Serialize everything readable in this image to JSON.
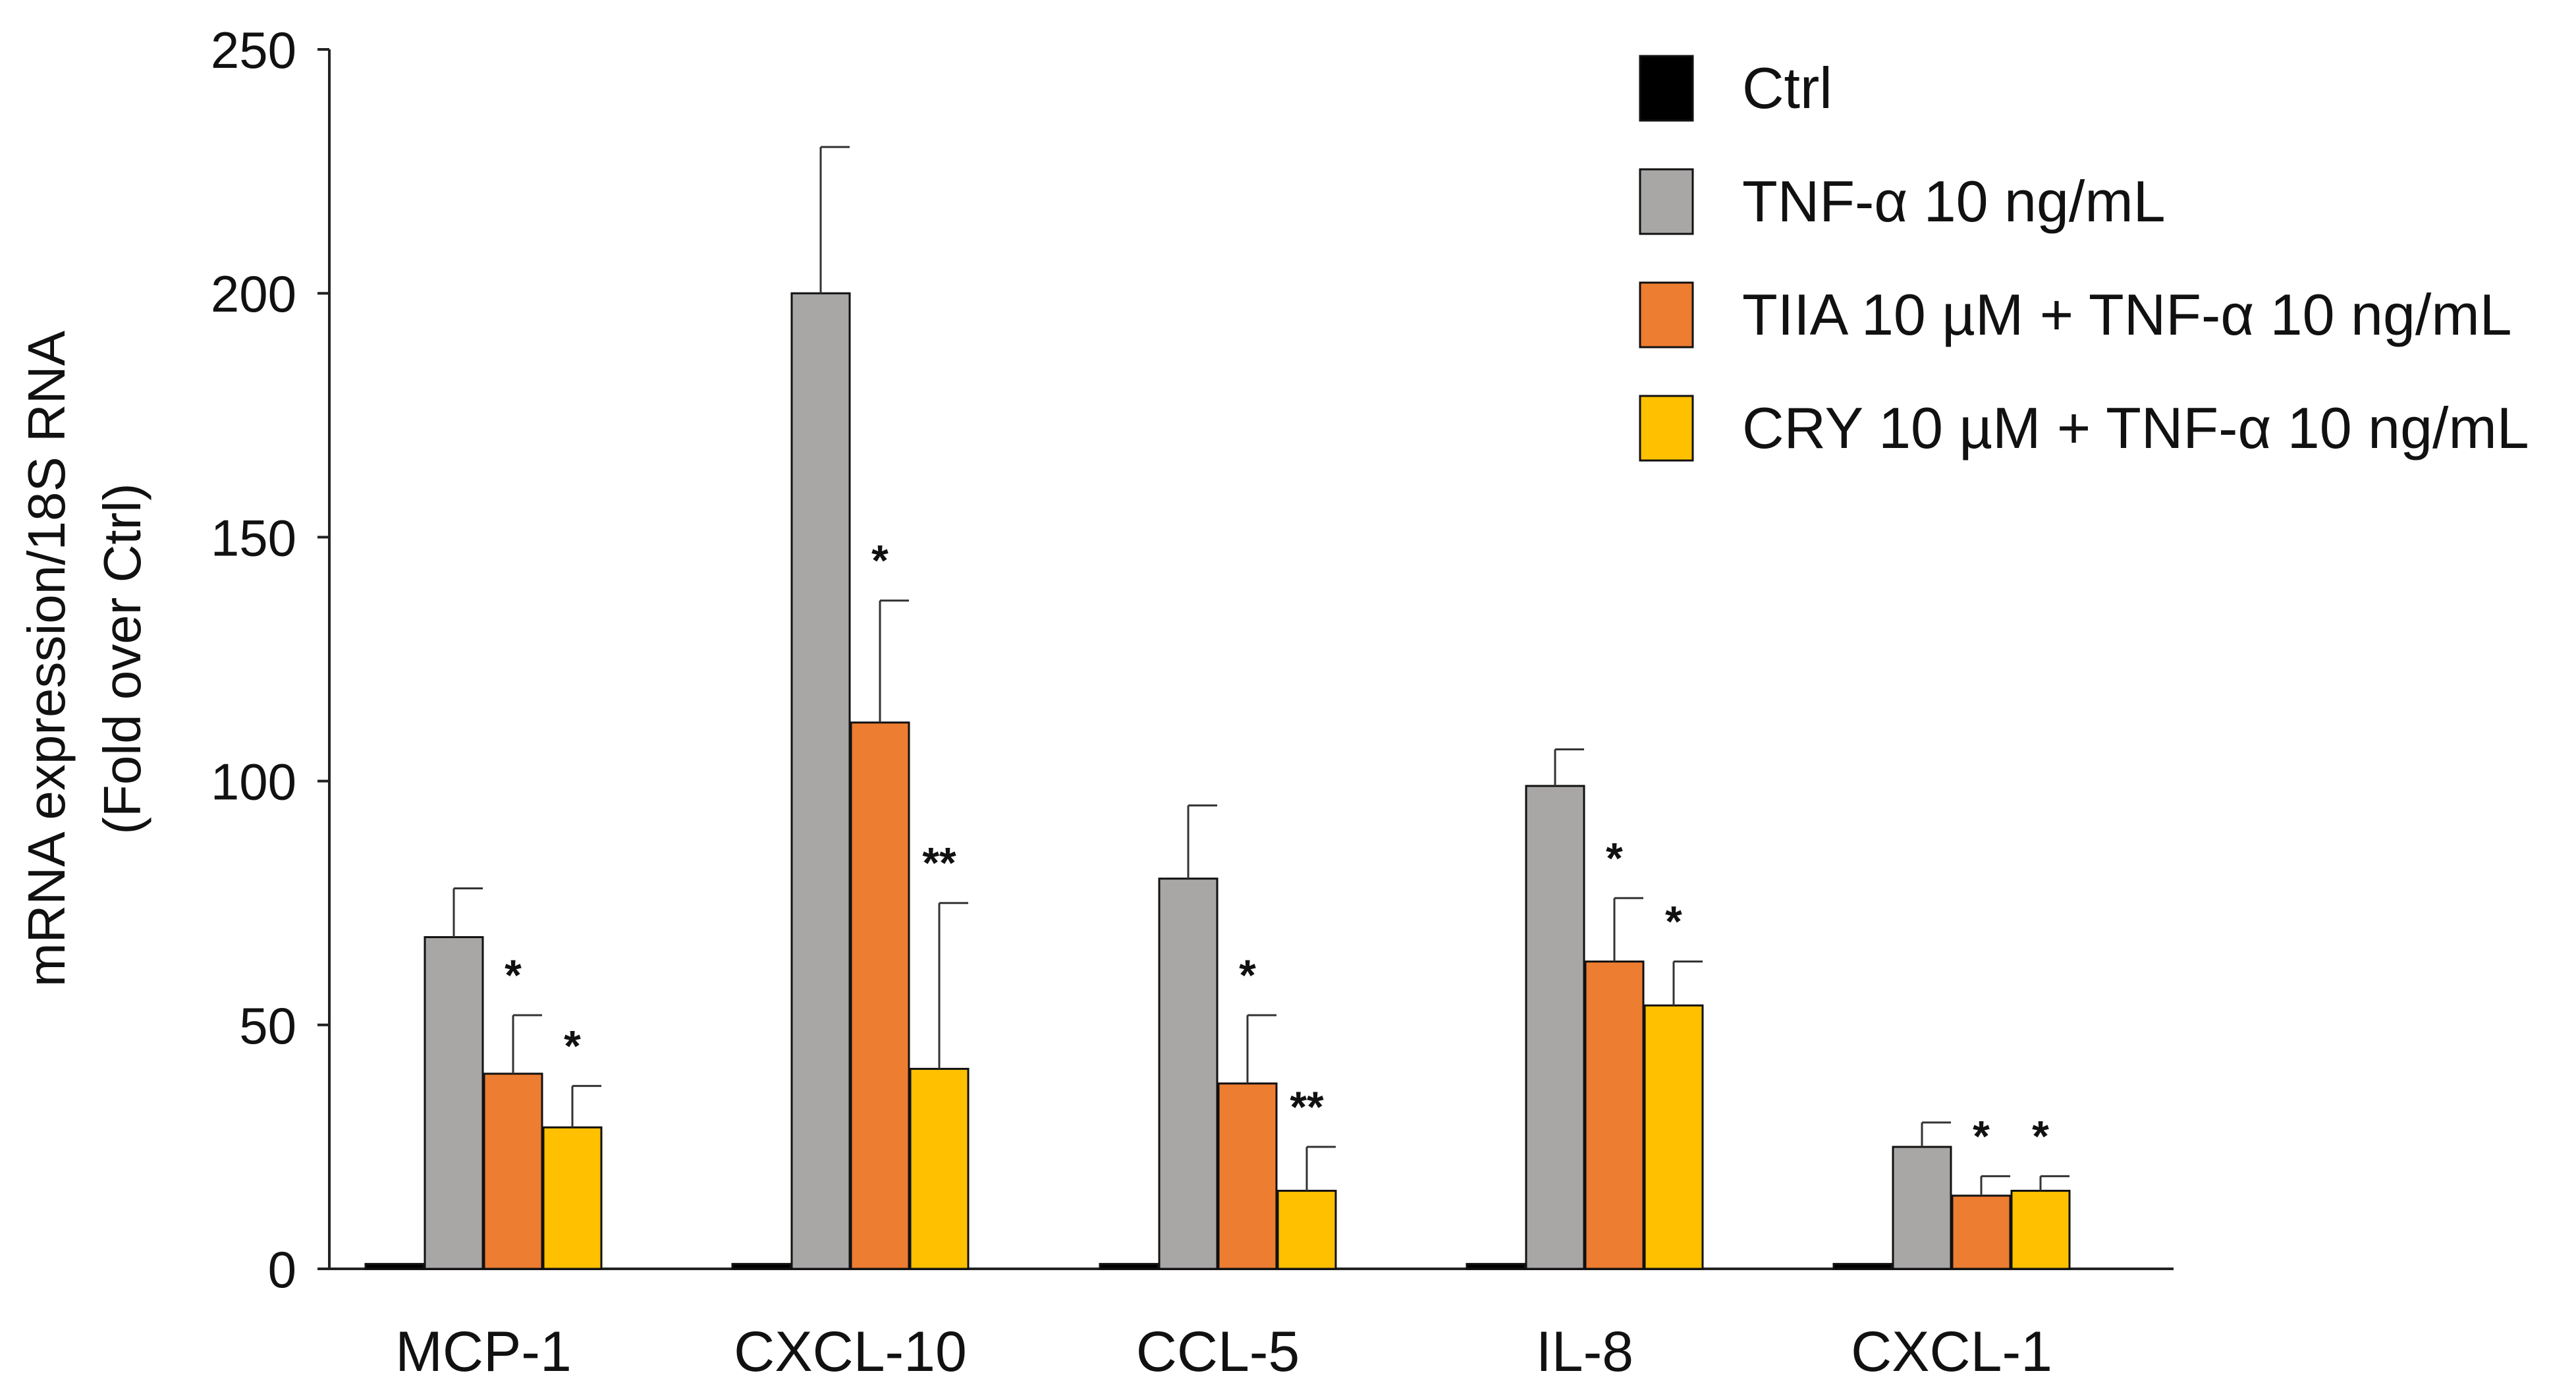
{
  "chart_data": {
    "type": "bar",
    "title": "",
    "xlabel": "",
    "ylabel": [
      "mRNA expression/18S RNA",
      "(Fold over Ctrl)"
    ],
    "ylim": [
      0,
      250
    ],
    "yticks": [
      0,
      50,
      100,
      150,
      200,
      250
    ],
    "categories": [
      "MCP-1",
      "CXCL-10",
      "CCL-5",
      "IL-8",
      "CXCL-1"
    ],
    "series": [
      {
        "name": "Ctrl",
        "color": "#000000",
        "values": [
          1,
          1,
          1,
          1,
          1
        ],
        "errors": [
          0,
          0,
          0,
          0,
          0
        ],
        "significance": [
          "",
          "",
          "",
          "",
          ""
        ]
      },
      {
        "name": "TNF-α 10 ng/mL",
        "color": "#a9a6a6",
        "values": [
          68,
          200,
          80,
          99,
          25
        ],
        "errors": [
          10,
          30,
          15,
          7.5,
          5
        ],
        "significance": [
          "",
          "",
          "",
          "",
          ""
        ]
      },
      {
        "name": "TIIA 10 µM + TNF-α 10 ng/mL",
        "color": "#ed7d31",
        "values": [
          40,
          112,
          38,
          63,
          15
        ],
        "errors": [
          12,
          25,
          14,
          13,
          4
        ],
        "significance": [
          "*",
          "*",
          "*",
          "*",
          "*"
        ]
      },
      {
        "name": "CRY 10 µM + TNF-α 10 ng/mL",
        "color": "#ffc000",
        "values": [
          29,
          41,
          16,
          54,
          16
        ],
        "errors": [
          8.5,
          34,
          9,
          9,
          3
        ],
        "significance": [
          "*",
          "**",
          "**",
          "*",
          "*"
        ]
      }
    ],
    "legend_position": "top-right",
    "grid": false
  }
}
